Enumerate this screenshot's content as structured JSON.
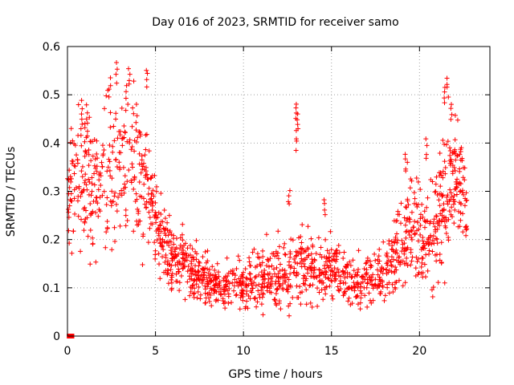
{
  "chart_data": {
    "type": "scatter",
    "title": "Day 016 of 2023, SRMTID for receiver samo",
    "xlabel": "GPS time / hours",
    "ylabel": "SRMTID / TECUs",
    "xlim": [
      0,
      24
    ],
    "ylim": [
      0,
      0.6
    ],
    "x_ticks": [
      0,
      5,
      10,
      15,
      20
    ],
    "x_tick_labels": [
      "0",
      "5",
      "10",
      "15",
      "20"
    ],
    "y_ticks": [
      0,
      0.1,
      0.2,
      0.3,
      0.4,
      0.5,
      0.6
    ],
    "y_tick_labels": [
      "0",
      "0.1",
      "0.2",
      "0.3",
      "0.4",
      "0.5",
      "0.6"
    ],
    "grid": true,
    "marker": "plus",
    "color": "#ff0000",
    "zero_markers": {
      "x": [
        0.1,
        0.25
      ],
      "y": [
        0,
        0
      ]
    },
    "series": [
      {
        "name": "SRMTID",
        "trend_x": [
          0.0,
          0.5,
          1.0,
          1.5,
          2.0,
          2.5,
          3.0,
          3.5,
          4.0,
          4.5,
          5.0,
          5.5,
          6.0,
          6.5,
          7.0,
          7.5,
          8.0,
          8.5,
          9.0,
          9.5,
          10.0,
          10.5,
          11.0,
          11.5,
          12.0,
          12.5,
          13.0,
          13.5,
          14.0,
          14.5,
          15.0,
          15.5,
          16.0,
          16.5,
          17.0,
          17.5,
          18.0,
          18.5,
          19.0,
          19.5,
          20.0,
          20.5,
          21.0,
          21.5,
          22.0,
          22.5,
          22.7
        ],
        "trend_y": [
          0.3,
          0.31,
          0.33,
          0.3,
          0.32,
          0.35,
          0.36,
          0.34,
          0.33,
          0.3,
          0.24,
          0.19,
          0.17,
          0.15,
          0.14,
          0.13,
          0.11,
          0.11,
          0.1,
          0.11,
          0.1,
          0.11,
          0.12,
          0.12,
          0.13,
          0.12,
          0.14,
          0.15,
          0.14,
          0.13,
          0.14,
          0.13,
          0.11,
          0.11,
          0.12,
          0.13,
          0.13,
          0.16,
          0.21,
          0.24,
          0.22,
          0.2,
          0.24,
          0.3,
          0.33,
          0.28,
          0.26
        ],
        "spread": [
          0.06,
          0.08,
          0.09,
          0.09,
          0.09,
          0.11,
          0.11,
          0.1,
          0.09,
          0.07,
          0.05,
          0.04,
          0.04,
          0.035,
          0.035,
          0.035,
          0.03,
          0.03,
          0.03,
          0.03,
          0.03,
          0.035,
          0.04,
          0.04,
          0.045,
          0.05,
          0.05,
          0.05,
          0.045,
          0.04,
          0.04,
          0.035,
          0.03,
          0.03,
          0.03,
          0.03,
          0.035,
          0.05,
          0.06,
          0.07,
          0.07,
          0.07,
          0.08,
          0.09,
          0.08,
          0.06,
          0.05
        ],
        "peaks": [
          {
            "x": 0.8,
            "y": 0.49
          },
          {
            "x": 1.1,
            "y": 0.48
          },
          {
            "x": 2.4,
            "y": 0.54
          },
          {
            "x": 2.8,
            "y": 0.57
          },
          {
            "x": 3.5,
            "y": 0.56
          },
          {
            "x": 4.5,
            "y": 0.56
          },
          {
            "x": 13.0,
            "y": 0.49
          },
          {
            "x": 13.1,
            "y": 0.47
          },
          {
            "x": 13.0,
            "y": 0.43
          },
          {
            "x": 12.6,
            "y": 0.31
          },
          {
            "x": 14.6,
            "y": 0.29
          },
          {
            "x": 21.4,
            "y": 0.52
          },
          {
            "x": 21.6,
            "y": 0.54
          },
          {
            "x": 21.8,
            "y": 0.49
          },
          {
            "x": 22.3,
            "y": 0.39
          },
          {
            "x": 20.4,
            "y": 0.41
          },
          {
            "x": 19.2,
            "y": 0.38
          }
        ],
        "point_count": 1600
      }
    ]
  }
}
